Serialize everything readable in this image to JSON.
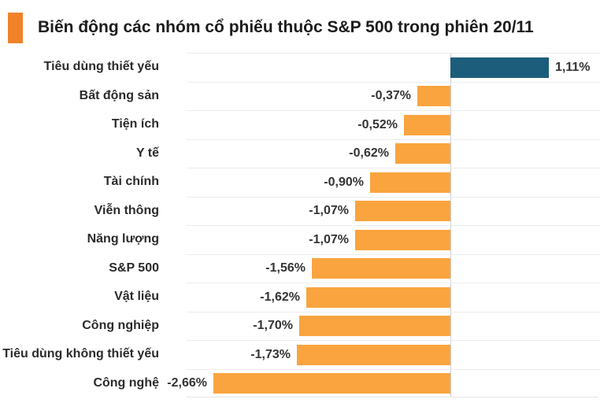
{
  "header": {
    "title": "Biến động các nhóm cổ phiếu thuộc S&P 500 trong phiên 20/11",
    "marker_color": "#F0832A"
  },
  "chart_data": {
    "type": "bar",
    "orientation": "horizontal",
    "title": "Biến động các nhóm cổ phiếu thuộc S&P 500 trong phiên 20/11",
    "categories": [
      "Tiêu dùng thiết yếu",
      "Bất động sản",
      "Tiện ích",
      "Y tế",
      "Tài chính",
      "Viễn thông",
      "Năng lượng",
      "S&P 500",
      "Vật liệu",
      "Công nghiệp",
      "Tiêu dùng không thiết yếu",
      "Công nghệ"
    ],
    "values": [
      1.11,
      -0.37,
      -0.52,
      -0.62,
      -0.9,
      -1.07,
      -1.07,
      -1.56,
      -1.62,
      -1.7,
      -1.73,
      -2.66
    ],
    "value_labels": [
      "1,11%",
      "-0,37%",
      "-0,52%",
      "-0,62%",
      "-0,90%",
      "-1,07%",
      "-1,07%",
      "-1,56%",
      "-1,62%",
      "-1,70%",
      "-1,73%",
      "-2,66%"
    ],
    "unit": "%",
    "xlabel": "",
    "ylabel": "",
    "xlim": [
      -2.96,
      1.68
    ],
    "baseline": 0,
    "grid": "horizontal-light",
    "legend": "none",
    "value_label_position": "outside-end",
    "positive_color": "#1C5D7C",
    "negative_color": "#F9A43E"
  }
}
